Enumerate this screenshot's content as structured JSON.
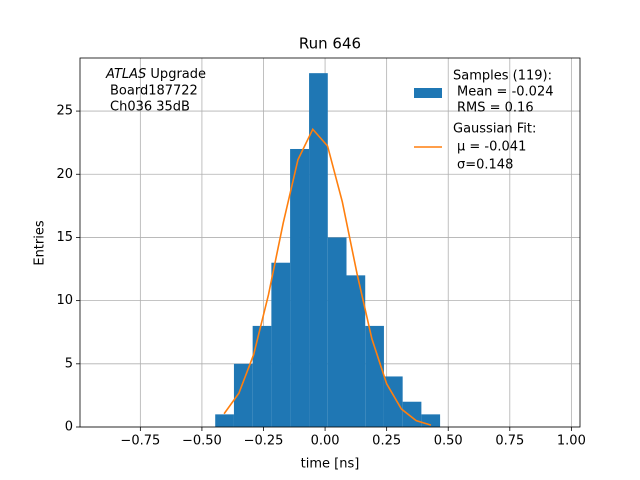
{
  "chart_data": {
    "type": "histogram",
    "title": "Run 646",
    "x_label": "time [ns]",
    "y_label": "Entries",
    "annotation": {
      "emph": "ATLAS",
      "lines": [
        "Upgrade",
        "Board187722",
        "Ch036 35dB"
      ]
    },
    "bins": [
      -0.446,
      -0.37,
      -0.294,
      -0.218,
      -0.142,
      -0.065,
      0.011,
      0.087,
      0.163,
      0.239,
      0.315,
      0.391,
      0.467
    ],
    "series": [
      {
        "name": "Samples (119):",
        "details": [
          "Mean = -0.024",
          "RMS = 0.16"
        ],
        "color": "#1f77b4",
        "values": [
          1,
          5,
          8,
          13,
          22,
          28,
          15,
          12,
          8,
          4,
          2,
          1
        ]
      },
      {
        "name": "Gaussian Fit:",
        "details": [
          "μ = -0.041",
          "σ=0.148"
        ],
        "color": "#ff7f0e",
        "x": [
          -0.41,
          -0.35,
          -0.29,
          -0.23,
          -0.17,
          -0.11,
          -0.05,
          0.01,
          0.07,
          0.13,
          0.19,
          0.25,
          0.31,
          0.37,
          0.43
        ],
        "values": [
          1.05,
          2.67,
          5.73,
          10.45,
          16.14,
          21.16,
          23.56,
          22.24,
          17.82,
          12.11,
          6.98,
          3.42,
          1.42,
          0.5,
          0.15
        ]
      }
    ],
    "xlim": [
      -0.995,
      1.035
    ],
    "ylim": [
      0,
      29.2
    ],
    "xticks": [
      {
        "value": -0.75,
        "label": "−0.75"
      },
      {
        "value": -0.5,
        "label": "−0.50"
      },
      {
        "value": -0.25,
        "label": "−0.25"
      },
      {
        "value": 0,
        "label": "0.00"
      },
      {
        "value": 0.25,
        "label": "0.25"
      },
      {
        "value": 0.5,
        "label": "0.50"
      },
      {
        "value": 0.75,
        "label": "0.75"
      },
      {
        "value": 1,
        "label": "1.00"
      }
    ],
    "yticks": [
      0,
      5,
      10,
      15,
      20,
      25
    ],
    "grid": true
  }
}
